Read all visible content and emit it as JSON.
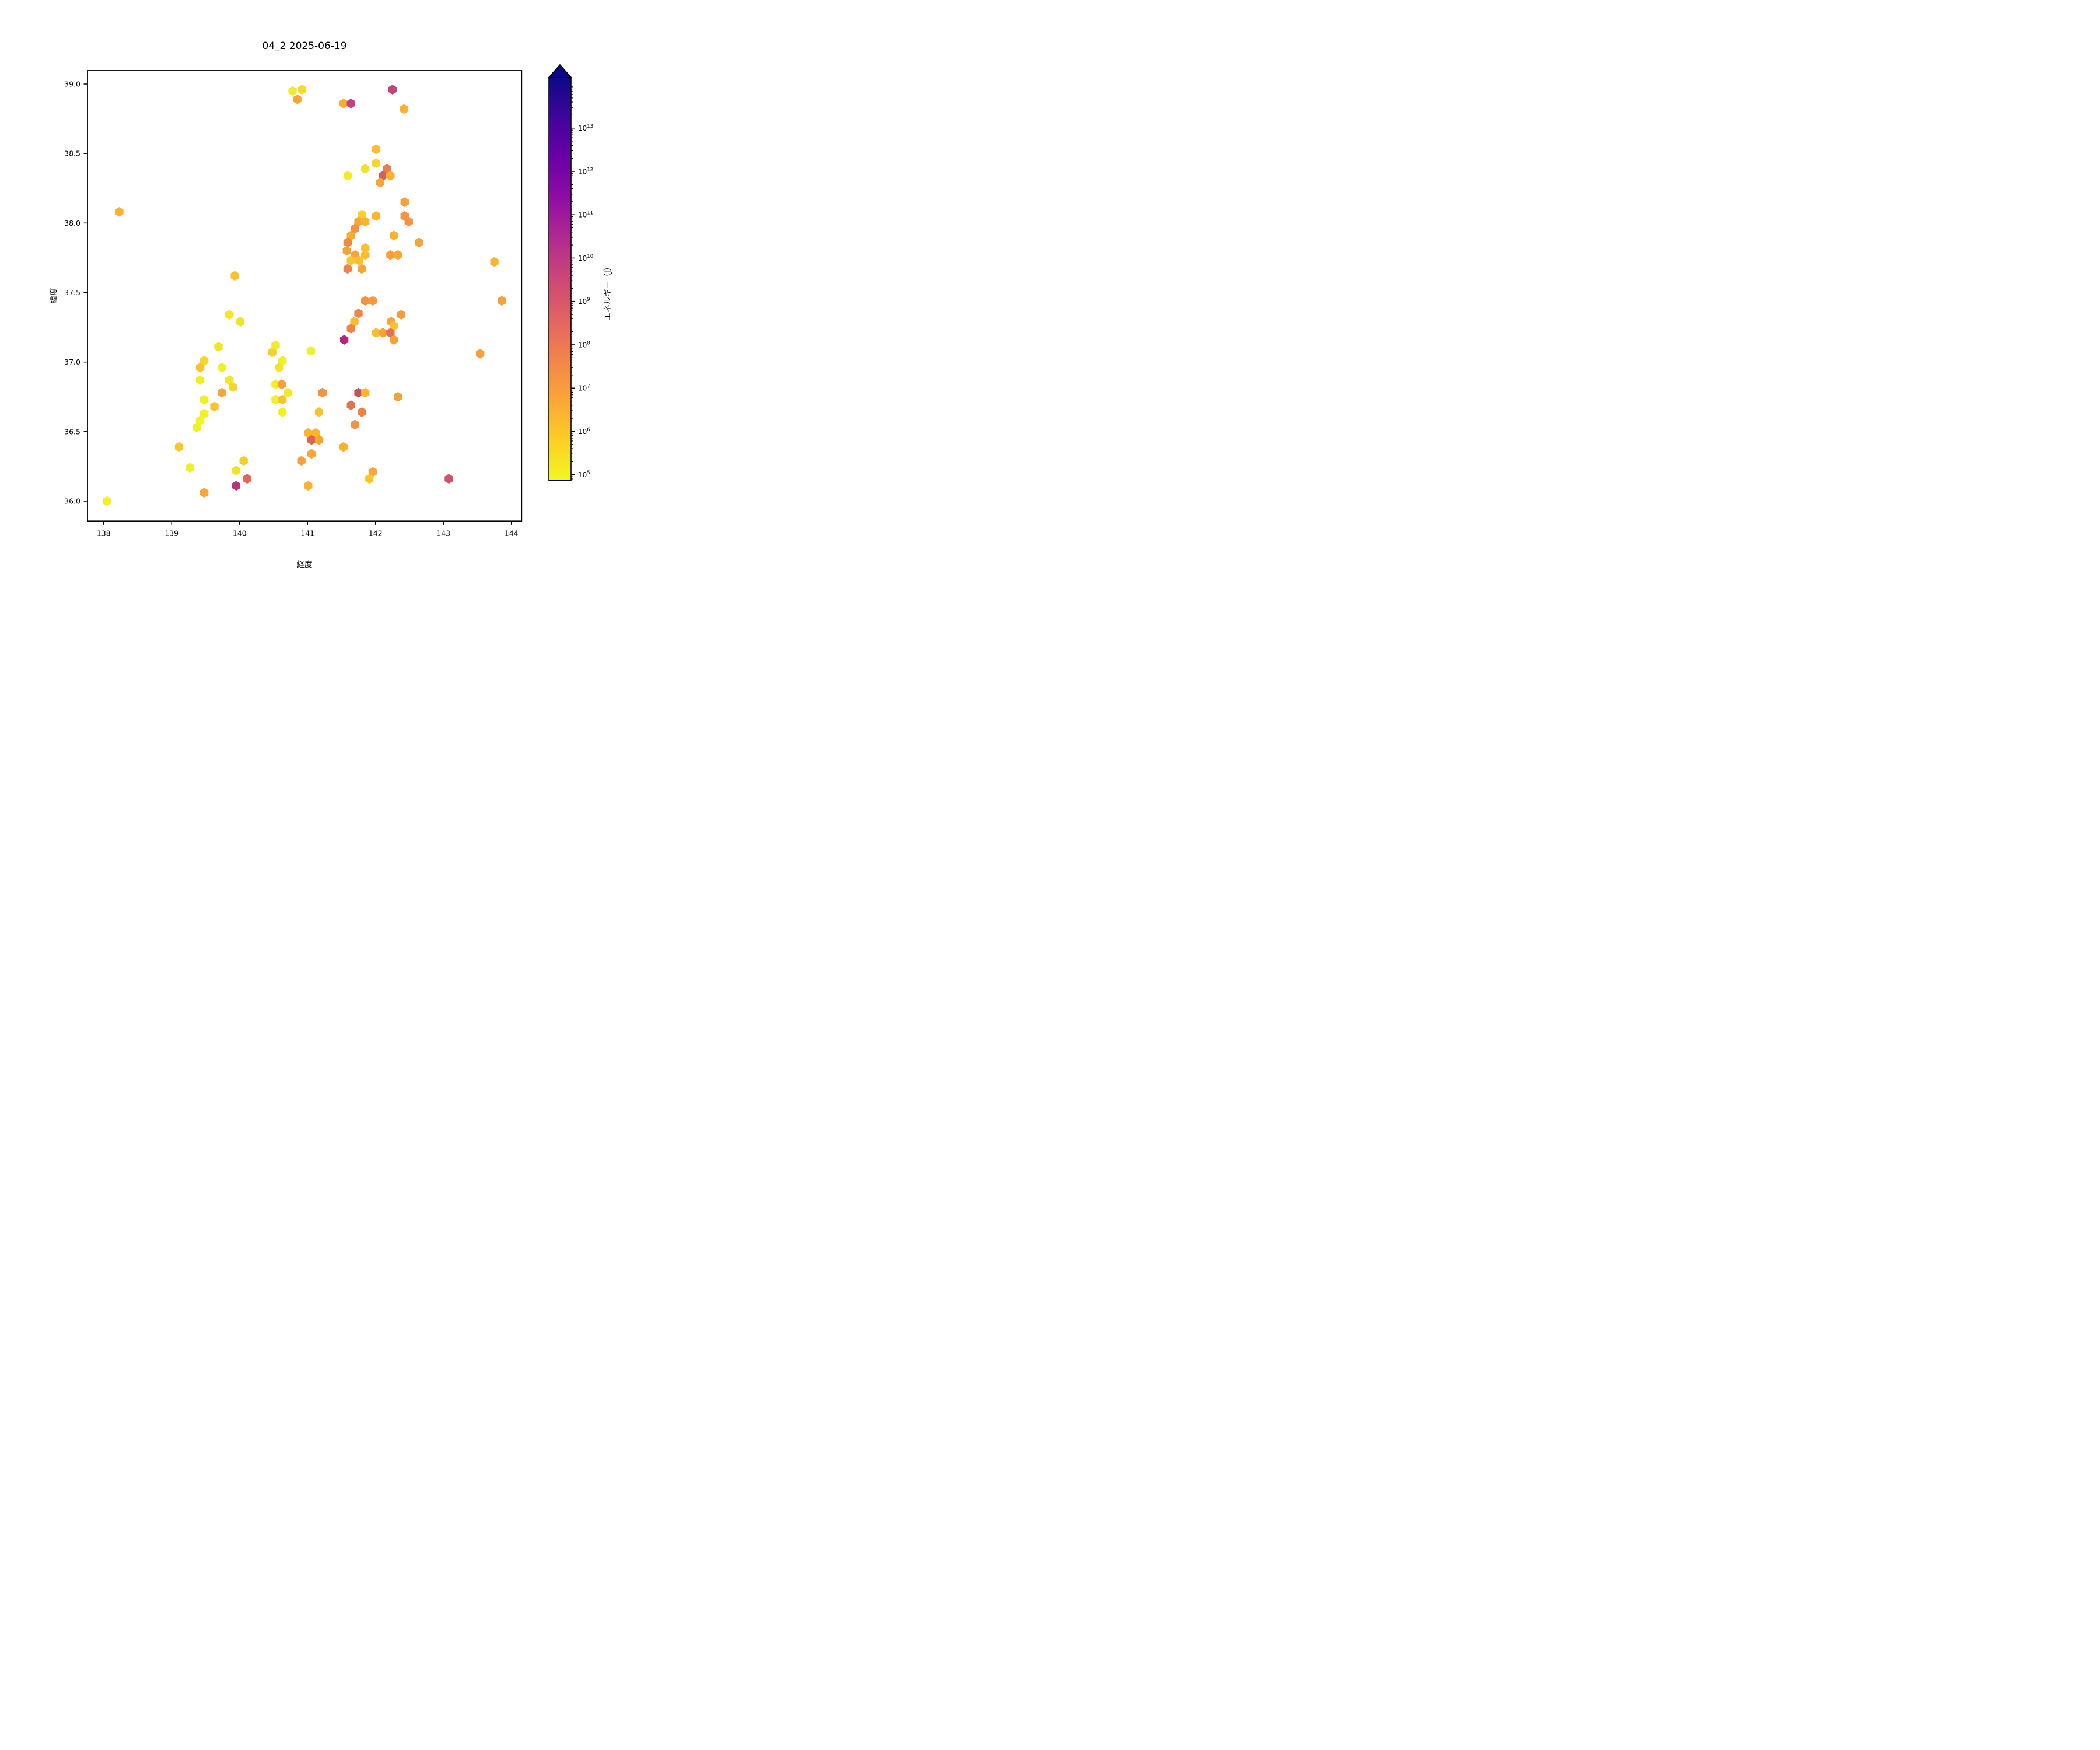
{
  "title": "04_2 2025-06-19",
  "chart_data": {
    "type": "scatter",
    "marker": "hexagon",
    "title": "04_2 2025-06-19",
    "xlabel": "経度",
    "ylabel": "緯度",
    "xlim": [
      137.76,
      144.15
    ],
    "ylim": [
      35.86,
      39.11
    ],
    "grid": false,
    "x_ticks": [
      "138",
      "139",
      "140",
      "141",
      "142",
      "143",
      "144"
    ],
    "x_tick_values": [
      138,
      139,
      140,
      141,
      142,
      143,
      144
    ],
    "y_ticks": [
      "39.0",
      "38.5",
      "38.0",
      "37.5",
      "37.0",
      "36.5",
      "36.0"
    ],
    "y_tick_values": [
      39.0,
      38.5,
      38.0,
      37.5,
      37.0,
      36.5,
      36.0
    ],
    "colorbar": {
      "label": "エネルギー（J）",
      "scale": "log",
      "extend": "max",
      "colormap": "plasma_r",
      "tick_exponents": [
        13,
        12,
        11,
        10,
        9,
        8,
        7,
        6,
        5
      ],
      "gradient_stops_bottom_to_top": [
        "#f0f921",
        "#fcce25",
        "#fca636",
        "#f2844b",
        "#e16462",
        "#cc4778",
        "#b12a90",
        "#8f0da4",
        "#6a00a8",
        "#41049d",
        "#0d0887"
      ],
      "arrow_color": "#0d0887"
    },
    "points_format": [
      "longitude",
      "latitude",
      "color",
      "energy_J_est"
    ],
    "points": [
      [
        140.78,
        38.95,
        "#f2e832",
        200000.0
      ],
      [
        140.92,
        38.96,
        "#f6d92a",
        450000.0
      ],
      [
        140.85,
        38.89,
        "#faa437",
        8000000.0
      ],
      [
        141.53,
        38.86,
        "#fbac32",
        3000000.0
      ],
      [
        141.64,
        38.86,
        "#c0417f",
        4000000000.0
      ],
      [
        142.25,
        38.96,
        "#c34479",
        1200000000.0
      ],
      [
        142.42,
        38.82,
        "#fbb02f",
        3000000.0
      ],
      [
        142.01,
        38.53,
        "#fbbd2c",
        1500000.0
      ],
      [
        142.01,
        38.43,
        "#f8d62a",
        450000.0
      ],
      [
        141.85,
        38.39,
        "#f6e02b",
        300000.0
      ],
      [
        141.59,
        38.34,
        "#f4ea28",
        200000.0
      ],
      [
        142.17,
        38.39,
        "#ed7c4c",
        60000000.0
      ],
      [
        142.11,
        38.34,
        "#d65f5e",
        350000000.0
      ],
      [
        142.22,
        38.34,
        "#fbb32e",
        3000000.0
      ],
      [
        142.07,
        38.29,
        "#faa634",
        8000000.0
      ],
      [
        142.43,
        38.15,
        "#f9a138",
        8000000.0
      ],
      [
        141.8,
        38.06,
        "#f8d12b",
        500000.0
      ],
      [
        142.01,
        38.05,
        "#fbb62d",
        3000000.0
      ],
      [
        142.43,
        38.05,
        "#f69343",
        25000000.0
      ],
      [
        141.75,
        38.01,
        "#faa735",
        8000000.0
      ],
      [
        141.85,
        38.01,
        "#fbb22f",
        3000000.0
      ],
      [
        141.7,
        37.96,
        "#f68f41",
        30000000.0
      ],
      [
        141.64,
        37.91,
        "#fbab31",
        4000000.0
      ],
      [
        142.49,
        38.01,
        "#f69343",
        25000000.0
      ],
      [
        142.27,
        37.91,
        "#fbb32e",
        3000000.0
      ],
      [
        141.59,
        37.86,
        "#f18a3e",
        40000000.0
      ],
      [
        141.58,
        37.8,
        "#f9a138",
        8000000.0
      ],
      [
        141.7,
        37.77,
        "#f9a33b",
        8000000.0
      ],
      [
        141.85,
        37.82,
        "#fbc12c",
        1200000.0
      ],
      [
        141.85,
        37.77,
        "#fbbb2f",
        2000000.0
      ],
      [
        141.64,
        37.73,
        "#fbc52c",
        1200000.0
      ],
      [
        141.76,
        37.73,
        "#fbbf2b",
        1500000.0
      ],
      [
        141.59,
        37.67,
        "#ef8050",
        60000000.0
      ],
      [
        141.8,
        37.67,
        "#faa434",
        8000000.0
      ],
      [
        142.22,
        37.77,
        "#f9a138",
        8000000.0
      ],
      [
        142.33,
        37.77,
        "#faa636",
        8000000.0
      ],
      [
        142.64,
        37.86,
        "#f9a439",
        8000000.0
      ],
      [
        143.75,
        37.72,
        "#fbb330",
        3000000.0
      ],
      [
        143.86,
        37.44,
        "#f9a038",
        10000000.0
      ],
      [
        141.85,
        37.44,
        "#f5923f",
        25000000.0
      ],
      [
        141.96,
        37.44,
        "#f79a3b",
        15000000.0
      ],
      [
        141.75,
        37.35,
        "#f0854a",
        50000000.0
      ],
      [
        141.69,
        37.29,
        "#fbbb2e",
        2000000.0
      ],
      [
        141.64,
        37.24,
        "#f28246",
        40000000.0
      ],
      [
        142.38,
        37.34,
        "#f89b3b",
        15000000.0
      ],
      [
        142.23,
        37.29,
        "#f9a63a",
        8000000.0
      ],
      [
        142.27,
        37.26,
        "#fbc32d",
        1200000.0
      ],
      [
        142.01,
        37.21,
        "#fbbc2e",
        2000000.0
      ],
      [
        142.11,
        37.21,
        "#f9a037",
        10000000.0
      ],
      [
        142.22,
        37.21,
        "#e4714f",
        130000000.0
      ],
      [
        142.27,
        37.16,
        "#f9a138",
        8000000.0
      ],
      [
        141.54,
        37.16,
        "#b5277f",
        9000000000.0
      ],
      [
        141.05,
        37.08,
        "#f1ef27",
        150000.0
      ],
      [
        139.85,
        37.34,
        "#f2e829",
        200000.0
      ],
      [
        140.01,
        37.29,
        "#f0e32a",
        300000.0
      ],
      [
        139.69,
        37.11,
        "#f1e52a",
        250000.0
      ],
      [
        139.48,
        37.01,
        "#f5d929",
        450000.0
      ],
      [
        139.42,
        36.96,
        "#f8c42e",
        1500000.0
      ],
      [
        139.74,
        36.96,
        "#f0f024",
        120000.0
      ],
      [
        139.42,
        36.87,
        "#f0ef26",
        130000.0
      ],
      [
        139.85,
        36.87,
        "#f2e62a",
        250000.0
      ],
      [
        139.9,
        36.82,
        "#f4d72b",
        500000.0
      ],
      [
        139.74,
        36.78,
        "#f9a63a",
        8000000.0
      ],
      [
        139.48,
        36.73,
        "#f0f122",
        120000.0
      ],
      [
        139.63,
        36.68,
        "#f7c32e",
        1500000.0
      ],
      [
        139.48,
        36.63,
        "#f2ef25",
        150000.0
      ],
      [
        139.42,
        36.58,
        "#f2f325",
        120000.0
      ],
      [
        139.37,
        36.53,
        "#f0f321",
        100000.0
      ],
      [
        139.11,
        36.39,
        "#f6c926",
        1200000.0
      ],
      [
        139.27,
        36.24,
        "#eff028",
        130000.0
      ],
      [
        140.06,
        36.29,
        "#f6ce27",
        1000000.0
      ],
      [
        139.95,
        36.22,
        "#f3e327",
        300000.0
      ],
      [
        140.11,
        36.16,
        "#e0695b",
        200000000.0
      ],
      [
        139.95,
        36.11,
        "#b93475",
        7000000000.0
      ],
      [
        139.48,
        36.06,
        "#faa534",
        8000000.0
      ],
      [
        139.93,
        37.62,
        "#fbc02b",
        1200000.0
      ],
      [
        140.48,
        37.07,
        "#f4d029",
        500000.0
      ],
      [
        140.53,
        37.12,
        "#f3ea28",
        200000.0
      ],
      [
        140.63,
        37.01,
        "#f3f026",
        120000.0
      ],
      [
        140.58,
        36.96,
        "#f2e52b",
        250000.0
      ],
      [
        140.53,
        36.84,
        "#f4ef25",
        150000.0
      ],
      [
        140.62,
        36.84,
        "#f9a138",
        8000000.0
      ],
      [
        140.71,
        36.78,
        "#f4e827",
        200000.0
      ],
      [
        140.53,
        36.73,
        "#f3ee26",
        150000.0
      ],
      [
        140.63,
        36.73,
        "#f7c52d",
        1300000.0
      ],
      [
        140.63,
        36.64,
        "#f3f028",
        140000.0
      ],
      [
        141.22,
        36.78,
        "#f69240",
        25000000.0
      ],
      [
        141.17,
        36.64,
        "#f7c52b",
        1300000.0
      ],
      [
        141.75,
        36.78,
        "#c65063",
        1500000000.0
      ],
      [
        141.85,
        36.78,
        "#f9b52e",
        3000000.0
      ],
      [
        141.64,
        36.69,
        "#e2734e",
        130000000.0
      ],
      [
        141.8,
        36.64,
        "#f08142",
        50000000.0
      ],
      [
        141.7,
        36.55,
        "#f69140",
        30000000.0
      ],
      [
        141.01,
        36.49,
        "#fbb42d",
        3000000.0
      ],
      [
        141.12,
        36.49,
        "#fbb42d",
        3000000.0
      ],
      [
        141.06,
        36.44,
        "#d96451",
        300000000.0
      ],
      [
        141.17,
        36.44,
        "#faa233",
        8000000.0
      ],
      [
        141.06,
        36.34,
        "#f9a63a",
        8000000.0
      ],
      [
        140.91,
        36.29,
        "#f9a138",
        8000000.0
      ],
      [
        141.53,
        36.39,
        "#fbb12f",
        3500000.0
      ],
      [
        141.96,
        36.21,
        "#f9a837",
        7000000.0
      ],
      [
        141.91,
        36.16,
        "#fcc723",
        1000000.0
      ],
      [
        141.01,
        36.11,
        "#fbb32e",
        3000000.0
      ],
      [
        142.33,
        36.75,
        "#f9a138",
        8000000.0
      ],
      [
        143.54,
        37.06,
        "#f9a038",
        10000000.0
      ],
      [
        143.08,
        36.16,
        "#cd5368",
        1000000000.0
      ],
      [
        138.05,
        36.0,
        "#f4ee27",
        180000.0
      ],
      [
        138.23,
        38.08,
        "#fbb22e",
        3000000.0
      ]
    ]
  }
}
